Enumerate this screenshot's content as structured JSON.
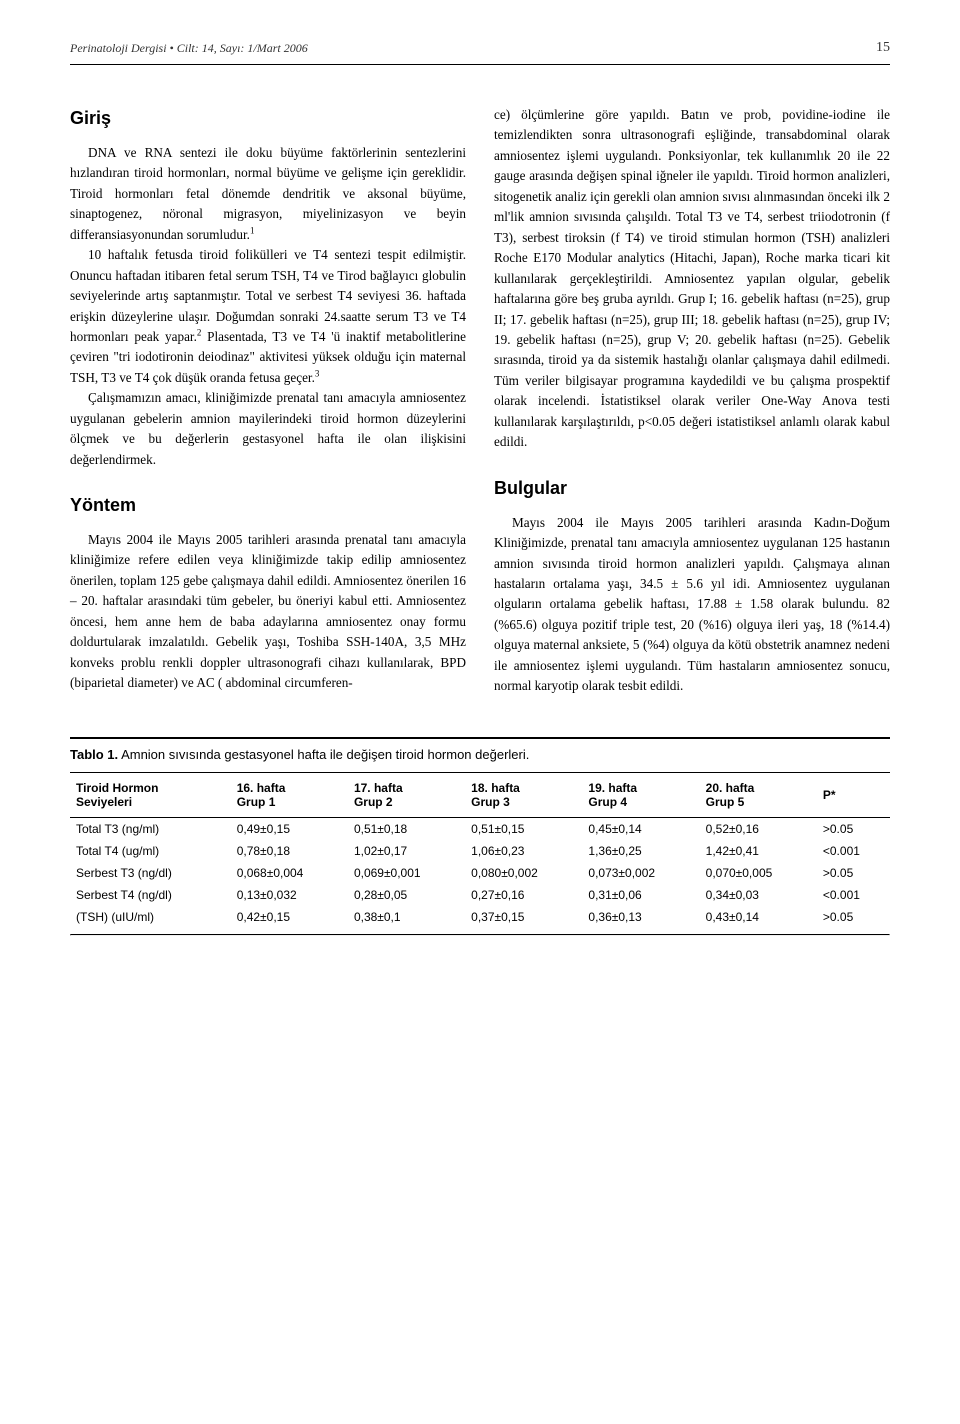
{
  "header": {
    "journal": "Perinatoloji Dergisi • Cilt: 14, Sayı: 1/Mart 2006",
    "page": "15"
  },
  "left": {
    "h1": "Giriş",
    "p1": "DNA ve RNA sentezi ile doku büyüme faktörlerinin sentezlerini hızlandıran tiroid hormonları, normal büyüme ve gelişme için gereklidir. Tiroid hormonları fetal dönemde dendritik ve aksonal büyüme, sinaptogenez, nöronal migrasyon, miyelinizasyon ve beyin differansiasyonundan sorumludur.",
    "ref1": "1",
    "p2a": "10 haftalık fetusda tiroid folikülleri ve T4 sentezi tespit edilmiştir. Onuncu haftadan itibaren fetal serum TSH, T4 ve Tirod bağlayıcı globulin seviyelerinde artış saptanmıştır. Total ve serbest T4 seviyesi 36. haftada erişkin düzeylerine ulaşır. Doğumdan sonraki 24.saatte serum T3 ve T4 hormonları peak yapar.",
    "ref2": "2",
    "p2b": " Plasentada, T3 ve T4 'ü inaktif metabolitlerine çeviren \"tri iodotironin deiodinaz\" aktivitesi yüksek olduğu için maternal TSH, T3 ve T4 çok düşük oranda fetusa geçer.",
    "ref3": "3",
    "p3": "Çalışmamızın amacı, kliniğimizde prenatal tanı amacıyla amniosentez uygulanan gebelerin amnion mayilerindeki tiroid hormon düzeylerini ölçmek ve bu değerlerin gestasyonel hafta ile olan ilişkisini değerlendirmek.",
    "h2": "Yöntem",
    "p4": "Mayıs 2004 ile Mayıs 2005 tarihleri arasında prenatal tanı amacıyla kliniğimize refere edilen veya kliniğimizde takip edilip amniosentez önerilen, toplam 125 gebe çalışmaya dahil edildi. Amniosentez önerilen 16 – 20. haftalar arasındaki tüm gebeler, bu öneriyi kabul etti. Amniosentez öncesi, hem anne hem de baba adaylarına amniosentez onay formu doldurtularak imzalatıldı. Gebelik yaşı, Toshiba SSH-140A, 3,5 MHz konveks problu renkli doppler ultrasonografi cihazı kullanılarak, BPD (biparietal diameter) ve AC ( abdominal circumferen-"
  },
  "right": {
    "p1": "ce) ölçümlerine göre yapıldı. Batın ve prob, povidine-iodine ile temizlendikten sonra ultrasonografi eşliğinde, transabdominal olarak amniosentez işlemi uygulandı. Ponksiyonlar, tek kullanımlık 20 ile 22 gauge arasında değişen spinal iğneler ile yapıldı. Tiroid hormon analizleri, sitogenetik analiz için gerekli olan amnion sıvısı alınmasından önceki ilk 2 ml'lik amnion sıvısında çalışıldı. Total T3 ve T4, serbest triiodotronin (f T3), serbest tiroksin (f T4) ve tiroid stimulan hormon (TSH) analizleri Roche E170 Modular analytics (Hitachi, Japan), Roche marka ticari kit kullanılarak gerçekleştirildi. Amniosentez yapılan olgular, gebelik haftalarına göre beş gruba ayrıldı. Grup I; 16. gebelik haftası (n=25), grup II; 17. gebelik haftası (n=25), grup III; 18. gebelik haftası (n=25), grup IV; 19. gebelik haftası (n=25), grup V; 20. gebelik haftası (n=25). Gebelik sırasında, tiroid ya da sistemik hastalığı olanlar çalışmaya dahil edilmedi. Tüm veriler bilgisayar programına kaydedildi ve bu çalışma prospektif olarak incelendi. İstatistiksel olarak veriler One-Way Anova testi kullanılarak karşılaştırıldı, p<0.05 değeri istatistiksel anlamlı olarak kabul edildi.",
    "h1": "Bulgular",
    "p2": "Mayıs 2004 ile Mayıs 2005 tarihleri arasında Kadın-Doğum Kliniğimizde, prenatal tanı amacıyla amniosentez uygulanan 125 hastanın amnion sıvısında tiroid hormon analizleri yapıldı. Çalışmaya alınan hastaların ortalama yaşı, 34.5 ± 5.6 yıl idi. Amniosentez uygulanan olguların ortalama gebelik haftası, 17.88 ± 1.58 olarak bulundu. 82 (%65.6) olguya pozitif triple test, 20 (%16) olguya ileri yaş, 18 (%14.4) olguya maternal anksiete, 5 (%4) olguya da kötü obstetrik anamnez nedeni ile amniosentez işlemi uygulandı. Tüm hastaların amniosentez sonucu, normal karyotip olarak tesbit edildi."
  },
  "table": {
    "label": "Tablo 1.",
    "caption": "Amnion sıvısında gestasyonel hafta ile değişen tiroid hormon değerleri.",
    "columns": [
      "Tiroid Hormon Seviyeleri",
      "16. hafta Grup 1",
      "17. hafta Grup 2",
      "18. hafta Grup 3",
      "19. hafta Grup 4",
      "20. hafta Grup 5",
      "P*"
    ],
    "col_line1": [
      "Tiroid Hormon",
      "16. hafta",
      "17. hafta",
      "18. hafta",
      "19. hafta",
      "20. hafta",
      "P*"
    ],
    "col_line2": [
      "Seviyeleri",
      "Grup 1",
      "Grup 2",
      "Grup 3",
      "Grup 4",
      "Grup 5",
      ""
    ],
    "rows": [
      [
        "Total T3 (ng/ml)",
        "0,49±0,15",
        "0,51±0,18",
        "0,51±0,15",
        "0,45±0,14",
        "0,52±0,16",
        ">0.05"
      ],
      [
        "Total T4  (ug/ml)",
        "0,78±0,18",
        "1,02±0,17",
        "1,06±0,23",
        "1,36±0,25",
        "1,42±0,41",
        "<0.001"
      ],
      [
        "Serbest  T3 (ng/dl)",
        "0,068±0,004",
        "0,069±0,001",
        "0,080±0,002",
        "0,073±0,002",
        "0,070±0,005",
        ">0.05"
      ],
      [
        "Serbest T4 (ng/dl)",
        "0,13±0,032",
        "0,28±0,05",
        "0,27±0,16",
        "0,31±0,06",
        "0,34±0,03",
        "<0.001"
      ],
      [
        "(TSH) (uIU/ml)",
        "0,42±0,15",
        "0,38±0,1",
        "0,37±0,15",
        "0,36±0,13",
        "0,43±0,14",
        ">0.05"
      ]
    ]
  }
}
